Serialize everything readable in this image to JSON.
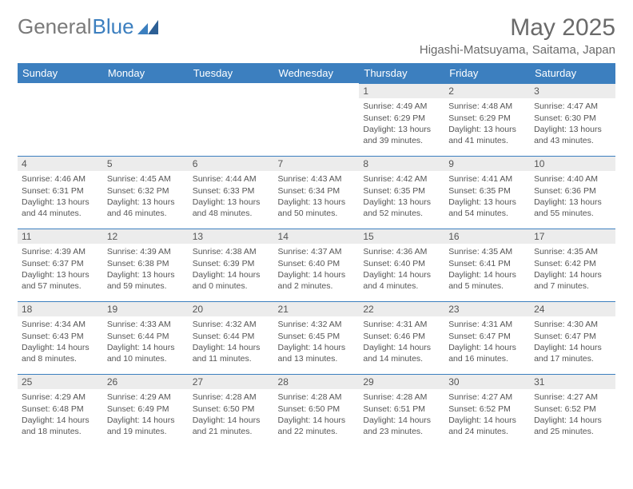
{
  "logo": {
    "text1": "General",
    "text2": "Blue"
  },
  "title": "May 2025",
  "location": "Higashi-Matsuyama, Saitama, Japan",
  "colors": {
    "header_bg": "#3c7fbf",
    "header_text": "#ffffff",
    "daynum_bg": "#ececec",
    "day_border": "#3c7fbf",
    "body_text": "#555555",
    "page_bg": "#ffffff"
  },
  "font": {
    "family": "Arial",
    "title_size": 30,
    "header_size": 13,
    "daynum_size": 12,
    "body_size": 10.5
  },
  "weekdays": [
    "Sunday",
    "Monday",
    "Tuesday",
    "Wednesday",
    "Thursday",
    "Friday",
    "Saturday"
  ],
  "weeks": [
    [
      null,
      null,
      null,
      null,
      {
        "n": "1",
        "sr": "4:49 AM",
        "ss": "6:29 PM",
        "dl": "13 hours and 39 minutes."
      },
      {
        "n": "2",
        "sr": "4:48 AM",
        "ss": "6:29 PM",
        "dl": "13 hours and 41 minutes."
      },
      {
        "n": "3",
        "sr": "4:47 AM",
        "ss": "6:30 PM",
        "dl": "13 hours and 43 minutes."
      }
    ],
    [
      {
        "n": "4",
        "sr": "4:46 AM",
        "ss": "6:31 PM",
        "dl": "13 hours and 44 minutes."
      },
      {
        "n": "5",
        "sr": "4:45 AM",
        "ss": "6:32 PM",
        "dl": "13 hours and 46 minutes."
      },
      {
        "n": "6",
        "sr": "4:44 AM",
        "ss": "6:33 PM",
        "dl": "13 hours and 48 minutes."
      },
      {
        "n": "7",
        "sr": "4:43 AM",
        "ss": "6:34 PM",
        "dl": "13 hours and 50 minutes."
      },
      {
        "n": "8",
        "sr": "4:42 AM",
        "ss": "6:35 PM",
        "dl": "13 hours and 52 minutes."
      },
      {
        "n": "9",
        "sr": "4:41 AM",
        "ss": "6:35 PM",
        "dl": "13 hours and 54 minutes."
      },
      {
        "n": "10",
        "sr": "4:40 AM",
        "ss": "6:36 PM",
        "dl": "13 hours and 55 minutes."
      }
    ],
    [
      {
        "n": "11",
        "sr": "4:39 AM",
        "ss": "6:37 PM",
        "dl": "13 hours and 57 minutes."
      },
      {
        "n": "12",
        "sr": "4:39 AM",
        "ss": "6:38 PM",
        "dl": "13 hours and 59 minutes."
      },
      {
        "n": "13",
        "sr": "4:38 AM",
        "ss": "6:39 PM",
        "dl": "14 hours and 0 minutes."
      },
      {
        "n": "14",
        "sr": "4:37 AM",
        "ss": "6:40 PM",
        "dl": "14 hours and 2 minutes."
      },
      {
        "n": "15",
        "sr": "4:36 AM",
        "ss": "6:40 PM",
        "dl": "14 hours and 4 minutes."
      },
      {
        "n": "16",
        "sr": "4:35 AM",
        "ss": "6:41 PM",
        "dl": "14 hours and 5 minutes."
      },
      {
        "n": "17",
        "sr": "4:35 AM",
        "ss": "6:42 PM",
        "dl": "14 hours and 7 minutes."
      }
    ],
    [
      {
        "n": "18",
        "sr": "4:34 AM",
        "ss": "6:43 PM",
        "dl": "14 hours and 8 minutes."
      },
      {
        "n": "19",
        "sr": "4:33 AM",
        "ss": "6:44 PM",
        "dl": "14 hours and 10 minutes."
      },
      {
        "n": "20",
        "sr": "4:32 AM",
        "ss": "6:44 PM",
        "dl": "14 hours and 11 minutes."
      },
      {
        "n": "21",
        "sr": "4:32 AM",
        "ss": "6:45 PM",
        "dl": "14 hours and 13 minutes."
      },
      {
        "n": "22",
        "sr": "4:31 AM",
        "ss": "6:46 PM",
        "dl": "14 hours and 14 minutes."
      },
      {
        "n": "23",
        "sr": "4:31 AM",
        "ss": "6:47 PM",
        "dl": "14 hours and 16 minutes."
      },
      {
        "n": "24",
        "sr": "4:30 AM",
        "ss": "6:47 PM",
        "dl": "14 hours and 17 minutes."
      }
    ],
    [
      {
        "n": "25",
        "sr": "4:29 AM",
        "ss": "6:48 PM",
        "dl": "14 hours and 18 minutes."
      },
      {
        "n": "26",
        "sr": "4:29 AM",
        "ss": "6:49 PM",
        "dl": "14 hours and 19 minutes."
      },
      {
        "n": "27",
        "sr": "4:28 AM",
        "ss": "6:50 PM",
        "dl": "14 hours and 21 minutes."
      },
      {
        "n": "28",
        "sr": "4:28 AM",
        "ss": "6:50 PM",
        "dl": "14 hours and 22 minutes."
      },
      {
        "n": "29",
        "sr": "4:28 AM",
        "ss": "6:51 PM",
        "dl": "14 hours and 23 minutes."
      },
      {
        "n": "30",
        "sr": "4:27 AM",
        "ss": "6:52 PM",
        "dl": "14 hours and 24 minutes."
      },
      {
        "n": "31",
        "sr": "4:27 AM",
        "ss": "6:52 PM",
        "dl": "14 hours and 25 minutes."
      }
    ]
  ],
  "labels": {
    "sunrise": "Sunrise:",
    "sunset": "Sunset:",
    "daylight": "Daylight:"
  }
}
